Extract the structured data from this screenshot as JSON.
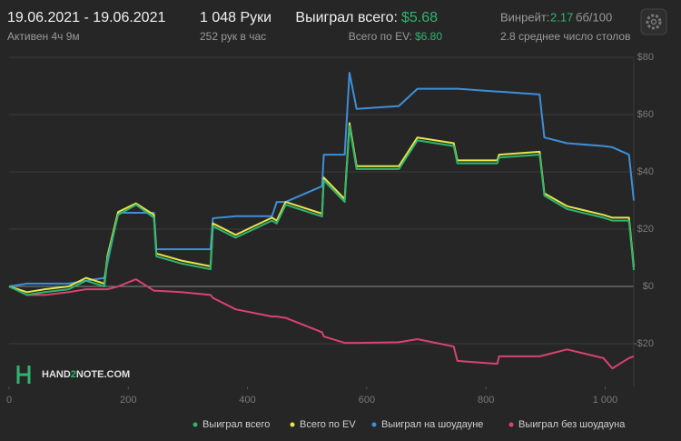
{
  "header": {
    "date_range": "19.06.2021 - 19.06.2021",
    "active": "Активен 4ч 9м",
    "hands": "1 048 Руки",
    "hands_per_hour": "252 рук в час",
    "won_label": "Выиграл всего:",
    "won_value": "$5.68",
    "ev_label": "Всего по EV:",
    "ev_value": "$6.80",
    "winrate_label": "Винрейт:",
    "winrate_value": "2.17",
    "winrate_unit": "бб/100",
    "tables": "2.8 среднее число столов"
  },
  "chart_data": {
    "type": "line",
    "watermark": [
      "HAND",
      "2",
      "NOTE.COM"
    ],
    "x": [
      0,
      30,
      60,
      100,
      129,
      160,
      165,
      183,
      213,
      243,
      247,
      289,
      338,
      342,
      380,
      441,
      449,
      464,
      525,
      528,
      563,
      571,
      583,
      654,
      685,
      746,
      752,
      819,
      822,
      890,
      898,
      936,
      997,
      1012,
      1040,
      1048
    ],
    "series": [
      {
        "name": "Выиграл всего",
        "color": "#2fb56e",
        "values": [
          0,
          -3,
          -2,
          -1,
          2,
          0,
          9.5,
          25,
          28.5,
          24,
          10.5,
          8,
          6,
          21,
          17,
          23,
          22,
          28.5,
          24.4,
          37,
          29.5,
          56,
          41,
          41,
          51,
          49,
          43,
          43,
          45,
          46,
          31.7,
          27,
          24,
          23,
          23,
          5.68
        ]
      },
      {
        "name": "Всего по EV",
        "color": "#e6e64a",
        "values": [
          0,
          -2,
          -1,
          0,
          3,
          1,
          10.5,
          26,
          29,
          25,
          11.5,
          9,
          7,
          22,
          18,
          24,
          23,
          29.5,
          25.4,
          38,
          30.5,
          57,
          42,
          42,
          52,
          50,
          44,
          44,
          46,
          47,
          32.5,
          28,
          25,
          24,
          24,
          6.8
        ]
      },
      {
        "name": "Выиграл на шоудауне",
        "color": "#3d8fd9",
        "values": [
          0,
          1,
          1,
          1,
          2,
          3,
          8,
          25.7,
          25.7,
          25.7,
          13,
          13,
          13,
          23.8,
          24.5,
          24.5,
          29.5,
          29.5,
          35,
          46,
          46,
          74.6,
          62,
          63,
          69,
          69,
          69,
          68,
          68,
          67,
          52,
          50,
          49,
          48.6,
          46,
          30
        ]
      },
      {
        "name": "Выиграл без шоудауна",
        "color": "#d9436e",
        "values": [
          0,
          -3,
          -3,
          -2,
          -1,
          -1,
          -1,
          0,
          2.5,
          -1.5,
          -1.5,
          -2,
          -3,
          -4,
          -8,
          -10.5,
          -10.5,
          -11,
          -16,
          -17.5,
          -19.7,
          -19.7,
          -19.7,
          -19.5,
          -18.4,
          -21,
          -26,
          -27,
          -24.4,
          -24.4,
          -24,
          -22,
          -25,
          -28.6,
          -25,
          -24.4
        ]
      }
    ],
    "xlim": [
      0,
      1048
    ],
    "xticks": [
      0,
      200,
      400,
      600,
      800,
      {
        "value": 1000,
        "label": "1 000"
      }
    ],
    "ylim": [
      -35,
      80
    ],
    "yticks": [
      {
        "value": -20,
        "label": "-$20"
      },
      {
        "value": 0,
        "label": "$0"
      },
      {
        "value": 20,
        "label": "$20"
      },
      {
        "value": 40,
        "label": "$40"
      },
      {
        "value": 60,
        "label": "$60"
      },
      {
        "value": 80,
        "label": "$80"
      }
    ],
    "grid": true,
    "legend": "bottom"
  }
}
